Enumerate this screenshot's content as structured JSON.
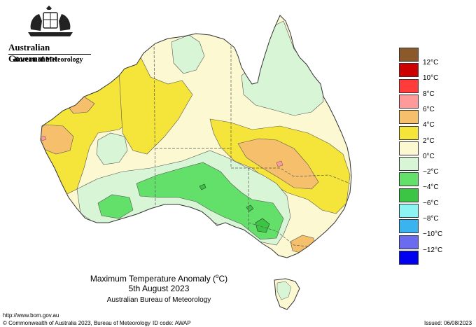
{
  "header": {
    "government": "Australian Government",
    "bureau": "Bureau of Meteorology"
  },
  "map": {
    "title_prefix": "Maximum Temperature Anomaly (",
    "title_unit": "o",
    "title_suffix": "C)",
    "date": "5th August 2023",
    "source": "Australian Bureau of Meteorology"
  },
  "legend": {
    "unit_prefix": "",
    "items": [
      {
        "label": "12°C",
        "color": "#8b5a2b"
      },
      {
        "label": "10°C",
        "color": "#cc0000"
      },
      {
        "label": "8°C",
        "color": "#ff3b3b"
      },
      {
        "label": "6°C",
        "color": "#ff9a9a"
      },
      {
        "label": "4°C",
        "color": "#f5bf6b"
      },
      {
        "label": "2°C",
        "color": "#f5e43a"
      },
      {
        "label": "0°C",
        "color": "#fbf8d2"
      },
      {
        "label": "−2°C",
        "color": "#d8f5d6"
      },
      {
        "label": "−4°C",
        "color": "#62e06a"
      },
      {
        "label": "−6°C",
        "color": "#3cc444"
      },
      {
        "label": "−8°C",
        "color": "#8df4f4"
      },
      {
        "label": "−10°C",
        "color": "#3ab3ee"
      },
      {
        "label": "−12°C",
        "color": "#6b6bf0"
      },
      {
        "label": "",
        "color": "#0000f0"
      }
    ]
  },
  "footer": {
    "url": "http://www.bom.gov.au",
    "copyright": "© Commonwealth of Australia 2023, Bureau of Meteorology",
    "id_code": "ID code: AWAP",
    "issued": "Issued: 06/08/2023"
  },
  "colors": {
    "land_base": "#fbf8d2",
    "warm_2": "#f5e43a",
    "warm_4": "#f5bf6b",
    "warm_6": "#ff9a9a",
    "cool_2": "#d8f5d6",
    "cool_4": "#62e06a",
    "cool_6": "#3cc444",
    "coast": "#333333"
  }
}
